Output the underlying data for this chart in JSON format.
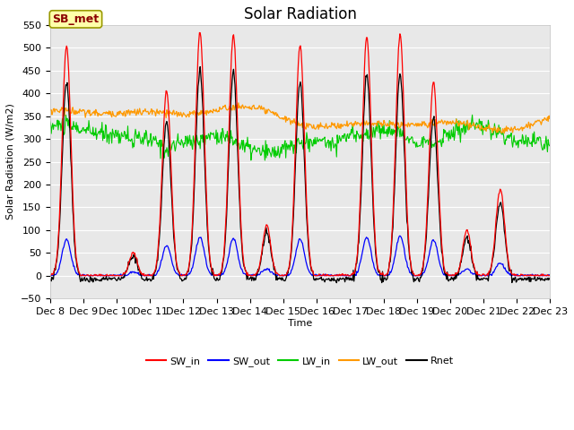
{
  "title": "Solar Radiation",
  "xlabel": "Time",
  "ylabel": "Solar Radiation (W/m2)",
  "ylim": [
    -50,
    550
  ],
  "station_label": "SB_met",
  "legend_entries": [
    "SW_in",
    "SW_out",
    "LW_in",
    "LW_out",
    "Rnet"
  ],
  "legend_colors": [
    "#ff0000",
    "#0000ff",
    "#00cc00",
    "#ff9900",
    "#000000"
  ],
  "xtick_labels": [
    "Dec 8",
    "Dec 9",
    "Dec 10",
    "Dec 11",
    "Dec 12",
    "Dec 13",
    "Dec 14",
    "Dec 15",
    "Dec 16",
    "Dec 17",
    "Dec 18",
    "Dec 19",
    "Dec 20",
    "Dec 21",
    "Dec 22",
    "Dec 23"
  ],
  "bg_color": "#e8e8e8",
  "fig_bg_color": "#ffffff",
  "grid_color": "#ffffff",
  "title_fontsize": 12
}
